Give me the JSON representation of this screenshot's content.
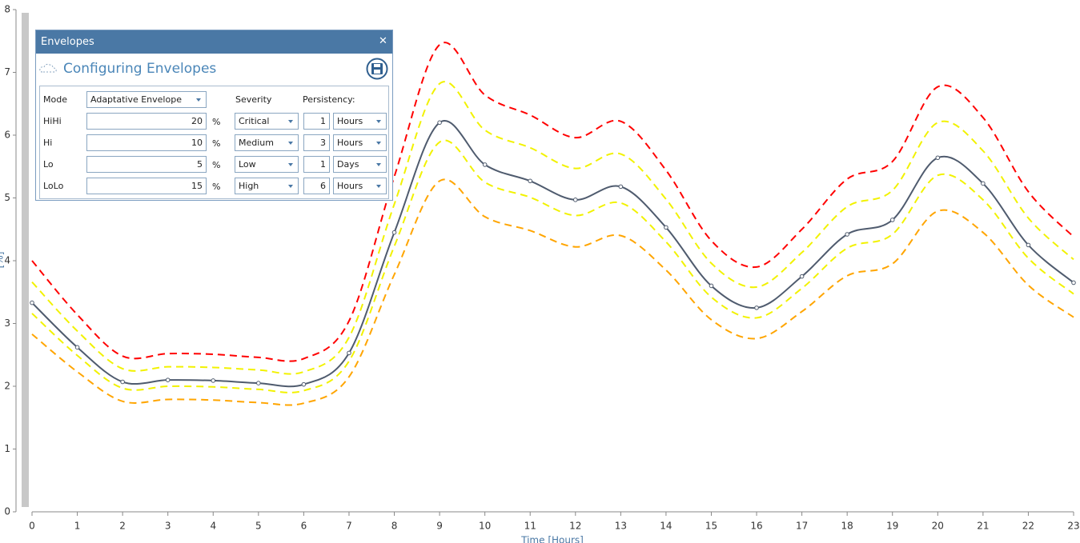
{
  "chart_data": {
    "type": "line",
    "x_label": "Time [Hours]",
    "y_label": "[%]",
    "x": [
      0,
      1,
      2,
      3,
      4,
      5,
      6,
      7,
      8,
      9,
      10,
      11,
      12,
      13,
      14,
      15,
      16,
      17,
      18,
      19,
      20,
      21,
      22,
      23
    ],
    "xlim": [
      0,
      23
    ],
    "xticks": [
      0,
      1,
      2,
      3,
      4,
      5,
      6,
      7,
      8,
      9,
      10,
      11,
      12,
      13,
      14,
      15,
      16,
      17,
      18,
      19,
      20,
      21,
      22,
      23
    ],
    "ylim": [
      0,
      8
    ],
    "yticks": [
      0,
      1,
      2,
      3,
      4,
      5,
      6,
      7,
      8
    ],
    "series": [
      {
        "color": "#ff0000",
        "dashed": true,
        "values": [
          4.0,
          3.14,
          2.48,
          2.52,
          2.51,
          2.46,
          2.44,
          3.04,
          5.34,
          7.44,
          6.64,
          6.32,
          5.96,
          6.22,
          5.44,
          4.32,
          3.9,
          4.5,
          5.3,
          5.58,
          6.77,
          6.28,
          5.1,
          4.38
        ]
      },
      {
        "color": "#f2f200",
        "dashed": true,
        "values": [
          3.66,
          2.88,
          2.28,
          2.31,
          2.3,
          2.26,
          2.23,
          2.78,
          4.9,
          6.82,
          6.08,
          5.8,
          5.47,
          5.7,
          4.98,
          3.96,
          3.58,
          4.13,
          4.86,
          5.12,
          6.2,
          5.75,
          4.68,
          4.02
        ]
      },
      {
        "color": "#f2f200",
        "dashed": true,
        "values": [
          3.16,
          2.49,
          1.97,
          2.0,
          1.99,
          1.95,
          1.93,
          2.4,
          4.23,
          5.89,
          5.25,
          5.01,
          4.72,
          4.92,
          4.3,
          3.42,
          3.09,
          3.56,
          4.2,
          4.42,
          5.36,
          4.97,
          4.04,
          3.47
        ]
      },
      {
        "color": "#ffa500",
        "dashed": true,
        "values": [
          2.83,
          2.23,
          1.76,
          1.79,
          1.78,
          1.74,
          1.73,
          2.15,
          3.78,
          5.27,
          4.7,
          4.48,
          4.22,
          4.4,
          3.85,
          3.06,
          2.76,
          3.19,
          3.76,
          3.95,
          4.79,
          4.45,
          3.61,
          3.1
        ]
      },
      {
        "color": "#4f5b6e",
        "dashed": false,
        "markers": true,
        "values": [
          3.33,
          2.62,
          2.07,
          2.1,
          2.09,
          2.05,
          2.03,
          2.53,
          4.45,
          6.2,
          5.53,
          5.27,
          4.97,
          5.18,
          4.53,
          3.6,
          3.25,
          3.75,
          4.42,
          4.65,
          5.64,
          5.23,
          4.25,
          3.65
        ]
      }
    ]
  },
  "panel": {
    "title": "Envelopes",
    "close": "✕",
    "heading": "Configuring Envelopes",
    "mode_label": "Mode",
    "mode": "Adaptative Envelope",
    "severity_header": "Severity",
    "persistency_header": "Persistency:",
    "rows": [
      {
        "label": "HiHi",
        "value": 20,
        "unit": "%",
        "severity": "Critical",
        "persistency": 1,
        "period": "Hours"
      },
      {
        "label": "Hi",
        "value": 10,
        "unit": "%",
        "severity": "Medium",
        "persistency": 3,
        "period": "Hours"
      },
      {
        "label": "Lo",
        "value": 5,
        "unit": "%",
        "severity": "Low",
        "persistency": 1,
        "period": "Days"
      },
      {
        "label": "LoLo",
        "value": 15,
        "unit": "%",
        "severity": "High",
        "persistency": 6,
        "period": "Hours"
      }
    ]
  }
}
